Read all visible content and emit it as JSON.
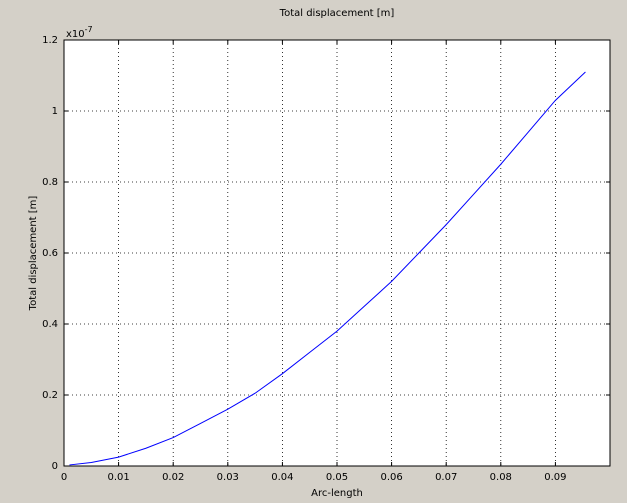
{
  "chart_data": {
    "type": "line",
    "title": "Total displacement [m]",
    "x_label": "Arc-length",
    "y_label": "Total displacement [m]",
    "y_multiplier": {
      "base": "x10",
      "exponent": "-7"
    },
    "x": [
      0.001,
      0.005,
      0.01,
      0.015,
      0.02,
      0.025,
      0.03,
      0.035,
      0.04,
      0.045,
      0.05,
      0.055,
      0.06,
      0.065,
      0.07,
      0.075,
      0.08,
      0.085,
      0.09,
      0.0955
    ],
    "series": [
      {
        "name": "Total displacement",
        "color": "#0000ff",
        "values": [
          0.003,
          0.01,
          0.025,
          0.05,
          0.08,
          0.12,
          0.16,
          0.205,
          0.26,
          0.32,
          0.38,
          0.45,
          0.52,
          0.6,
          0.68,
          0.765,
          0.85,
          0.94,
          1.03,
          1.11
        ]
      }
    ],
    "xlim": [
      0,
      0.1
    ],
    "ylim": [
      0,
      1.2
    ],
    "xticks": [
      0,
      0.01,
      0.02,
      0.03,
      0.04,
      0.05,
      0.06,
      0.07,
      0.08,
      0.09
    ],
    "yticks": [
      0,
      0.2,
      0.4,
      0.6,
      0.8,
      1,
      1.2
    ],
    "grid": true
  }
}
